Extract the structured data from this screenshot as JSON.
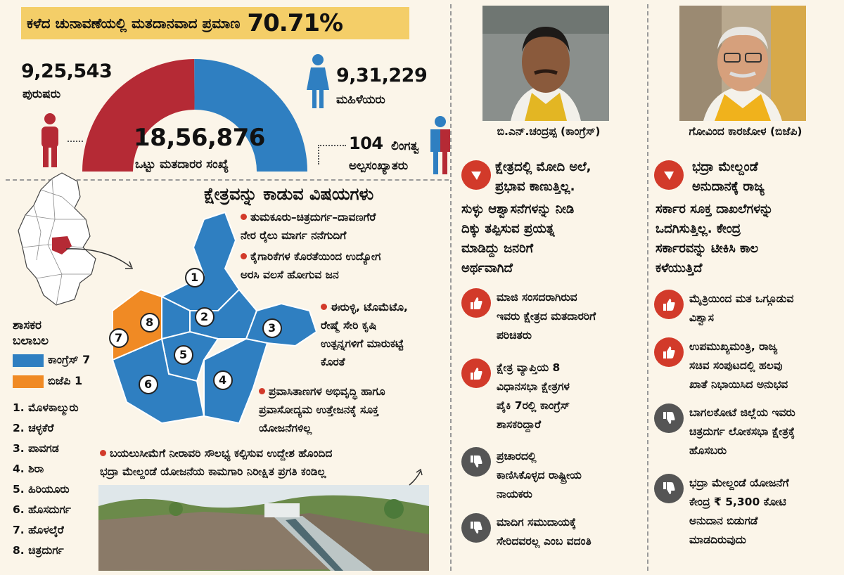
{
  "header": {
    "turnout_label": "ಕಳೆದ ಚುನಾವಣೆಯಲ್ಲಿ ಮತದಾನವಾದ ಪ್ರಮಾಣ",
    "turnout_value": "70.71%"
  },
  "voters": {
    "male_count": "9,25,543",
    "male_label": "ಪುರುಷರು",
    "female_count": "9,31,229",
    "female_label": "ಮಹಿಳೆಯರು",
    "total_count": "18,56,876",
    "total_label": "ಒಟ್ಟು ಮತದಾರರ ಸಂಖ್ಯೆ",
    "minority_count": "104",
    "minority_count_label": "ಲಿಂಗತ್ವ",
    "minority_label": "ಅಲ್ಪಸಂಖ್ಯಾತರು",
    "male_color": "#b52a35",
    "female_color": "#2f7fc1",
    "male_share": 0.4985
  },
  "issues": {
    "title": "ಕ್ಷೇತ್ರವನ್ನು ಕಾಡುವ ವಿಷಯಗಳು",
    "item1_line1": "ತುಮಕೂರು–ಚಿತ್ರದುರ್ಗ–ದಾವಣಗೆರೆ",
    "item1_line2": "ನೇರ ರೈಲು ಮಾರ್ಗ ನನೆಗುದಿಗೆ",
    "item2_line1": "ಕೈಗಾರಿಕೆಗಳ ಕೊರತೆಯಿಂದ ಉದ್ಯೋಗ",
    "item2_line2": "ಅರಸಿ ವಲಸೆ ಹೋಗುವ ಜನ",
    "item3_line1": "ಈರುಳ್ಳಿ, ಟೊಮೆಟೊ,",
    "item3_line2": "ರೇಷ್ಮೆ ಸೇರಿ ಕೃಷಿ",
    "item3_line3": "ಉತ್ಪನ್ನಗಳಿಗೆ ಮಾರುಕಟ್ಟೆ",
    "item3_line4": "ಕೊರತೆ",
    "item4_line1": "ಪ್ರವಾಸಿತಾಣಗಳ ಅಭಿವೃದ್ಧಿ ಹಾಗೂ",
    "item4_line2": "ಪ್ರವಾಸೋದ್ಯಮ ಉತ್ತೇಜನಕ್ಕೆ ಸೂಕ್ತ",
    "item4_line3": "ಯೋಜನೆಗಳಿಲ್ಲ",
    "item5_line1": "ಬಯಲುಸೀಮೆಗೆ ನೀರಾವರಿ ಸೌಲಭ್ಯ ಕಲ್ಪಿಸುವ ಉದ್ದೇಶ ಹೊಂದಿದ",
    "item5_line2": "ಭದ್ರಾ ಮೇಲ್ದಂಡೆ ಯೋಜನೆಯ ಕಾಮಗಾರಿ ನಿರೀಕ್ಷಿತ ಪ್ರಗತಿ ಕಂಡಿಲ್ಲ"
  },
  "legend": {
    "title_line1": "ಶಾಸಕರ",
    "title_line2": "ಬಲಾಬಲ",
    "congress_label": "ಕಾಂಗ್ರೆಸ್ 7",
    "bjp_label": "ಬಿಜೆಪಿ 1",
    "congress_color": "#2f7fc1",
    "bjp_color": "#f08a24"
  },
  "constituencies": [
    "1. ಮೊಳಕಾಲ್ಮುರು",
    "2. ಚಳ್ಳಕೆರೆ",
    "3. ಪಾವಗಡ",
    "4. ಶಿರಾ",
    "5. ಹಿರಿಯೂರು",
    "6. ಹೊಸದುರ್ಗ",
    "7. ಹೊಳಲ್ಕೆರೆ",
    "8. ಚಿತ್ರದುರ್ಗ"
  ],
  "map_numbers": [
    "1",
    "2",
    "3",
    "4",
    "5",
    "6",
    "7",
    "8"
  ],
  "candidate1": {
    "name": "ಬಿ.ಎನ್‌.ಚಂದ್ರಪ್ಪ (ಕಾಂಗ್ರೆಸ್‌)",
    "quote_lines": [
      "ಕ್ಷೇತ್ರದಲ್ಲಿ ಮೋದಿ ಅಲೆ,",
      "ಪ್ರಭಾವ ಕಾಣುತ್ತಿಲ್ಲ.",
      "ಸುಳ್ಳು ಆಶ್ವಾಸನೆಗಳನ್ನು ನೀಡಿ",
      "ದಿಕ್ಕು ತಪ್ಪಿಸುವ ಪ್ರಯತ್ನ",
      "ಮಾಡಿದ್ದು ಜನರಿಗೆ",
      "ಅರ್ಥವಾಗಿದೆ"
    ],
    "pro1": [
      "ಮಾಜಿ ಸಂಸದರಾಗಿರುವ",
      "ಇವರು ಕ್ಷೇತ್ರದ ಮತದಾರರಿಗೆ",
      "ಪರಿಚಿತರು"
    ],
    "pro2": [
      "ಕ್ಷೇತ್ರ ವ್ಯಾಪ್ತಿಯ 8",
      "ವಿಧಾನಸಭಾ ಕ್ಷೇತ್ರಗಳ",
      "ಪೈಕಿ 7ರಲ್ಲಿ ಕಾಂಗ್ರೆಸ್‌",
      "ಶಾಸಕರಿದ್ದಾರೆ"
    ],
    "con1": [
      "ಪ್ರಚಾರದಲ್ಲಿ",
      "ಕಾಣಿಸಿಕೊಳ್ಳದ ರಾಷ್ಟ್ರೀಯ",
      "ನಾಯಕರು"
    ],
    "con2": [
      "ಮಾದಿಗ ಸಮುದಾಯಕ್ಕೆ",
      "ಸೇರಿದವರಲ್ಲ ಎಂಬ ವದಂತಿ"
    ]
  },
  "candidate2": {
    "name": "ಗೋವಿಂದ ಕಾರಜೋಳ (ಬಿಜೆಪಿ)",
    "quote_lines": [
      "ಭದ್ರಾ ಮೇಲ್ದಂಡೆ",
      "ಅನುದಾನಕ್ಕೆ ರಾಜ್ಯ",
      "ಸರ್ಕಾರ ಸೂಕ್ತ ದಾಖಲೆಗಳನ್ನು",
      "ಒದಗಿಸುತ್ತಿಲ್ಲ. ಕೇಂದ್ರ",
      "ಸರ್ಕಾರವನ್ನು ಟೀಕಿಸಿ ಕಾಲ",
      "ಕಳೆಯುತ್ತಿದೆ"
    ],
    "pro1": [
      "ಮೈತ್ರಿಯಿಂದ ಮತ ಒಗ್ಗೂಡುವ",
      "ವಿಶ್ವಾಸ"
    ],
    "pro2": [
      "ಉಪಮುಖ್ಯಮಂತ್ರಿ, ರಾಜ್ಯ",
      "ಸಚಿವ ಸಂಪುಟದಲ್ಲಿ ಹಲವು",
      "ಖಾತೆ ನಿಭಾಯಿಸಿದ ಅನುಭವ"
    ],
    "con1": [
      "ಬಾಗಲಕೋಟೆ ಜಿಲ್ಲೆಯ ಇವರು",
      "ಚಿತ್ರದುರ್ಗ ಲೋಕಸಭಾ ಕ್ಷೇತ್ರಕ್ಕೆ",
      "ಹೊಸಬರು"
    ],
    "con2": [
      "ಭದ್ರಾ ಮೇಲ್ದಂಡೆ ಯೋಜನೆಗೆ",
      "ಕೇಂದ್ರ ₹ 5,300 ಕೋಟಿ",
      "ಅನುದಾನ ಬಿಡುಗಡೆ",
      "ಮಾಡದಿರುವುದು"
    ]
  }
}
